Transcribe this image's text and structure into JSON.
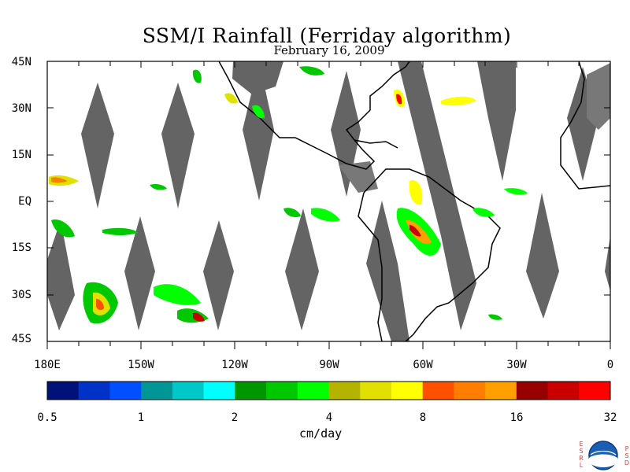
{
  "title": "SSM/I Rainfall (Ferriday algorithm)",
  "date": "February 16, 2009",
  "lat_labels": [
    "45N",
    "30N",
    "15N",
    "EQ",
    "15S",
    "30S",
    "45S"
  ],
  "lon_labels": [
    "180E",
    "150W",
    "120W",
    "90W",
    "60W",
    "30W",
    "0"
  ],
  "colorbar": {
    "colors": [
      "#00127a",
      "#0032c8",
      "#0050ff",
      "#009696",
      "#00c8c8",
      "#00ffff",
      "#009600",
      "#00c800",
      "#00ff00",
      "#b4b400",
      "#e1e100",
      "#ffff00",
      "#ff5000",
      "#ff7d00",
      "#ffa000",
      "#960000",
      "#c80000",
      "#ff0000"
    ],
    "labels": [
      "0.5",
      "1",
      "2",
      "4",
      "8",
      "16",
      "32"
    ],
    "units": "cm/day"
  },
  "logo": {
    "left_letters": "ESRL",
    "right_letters": "PSD",
    "name": "noaa-logo"
  }
}
